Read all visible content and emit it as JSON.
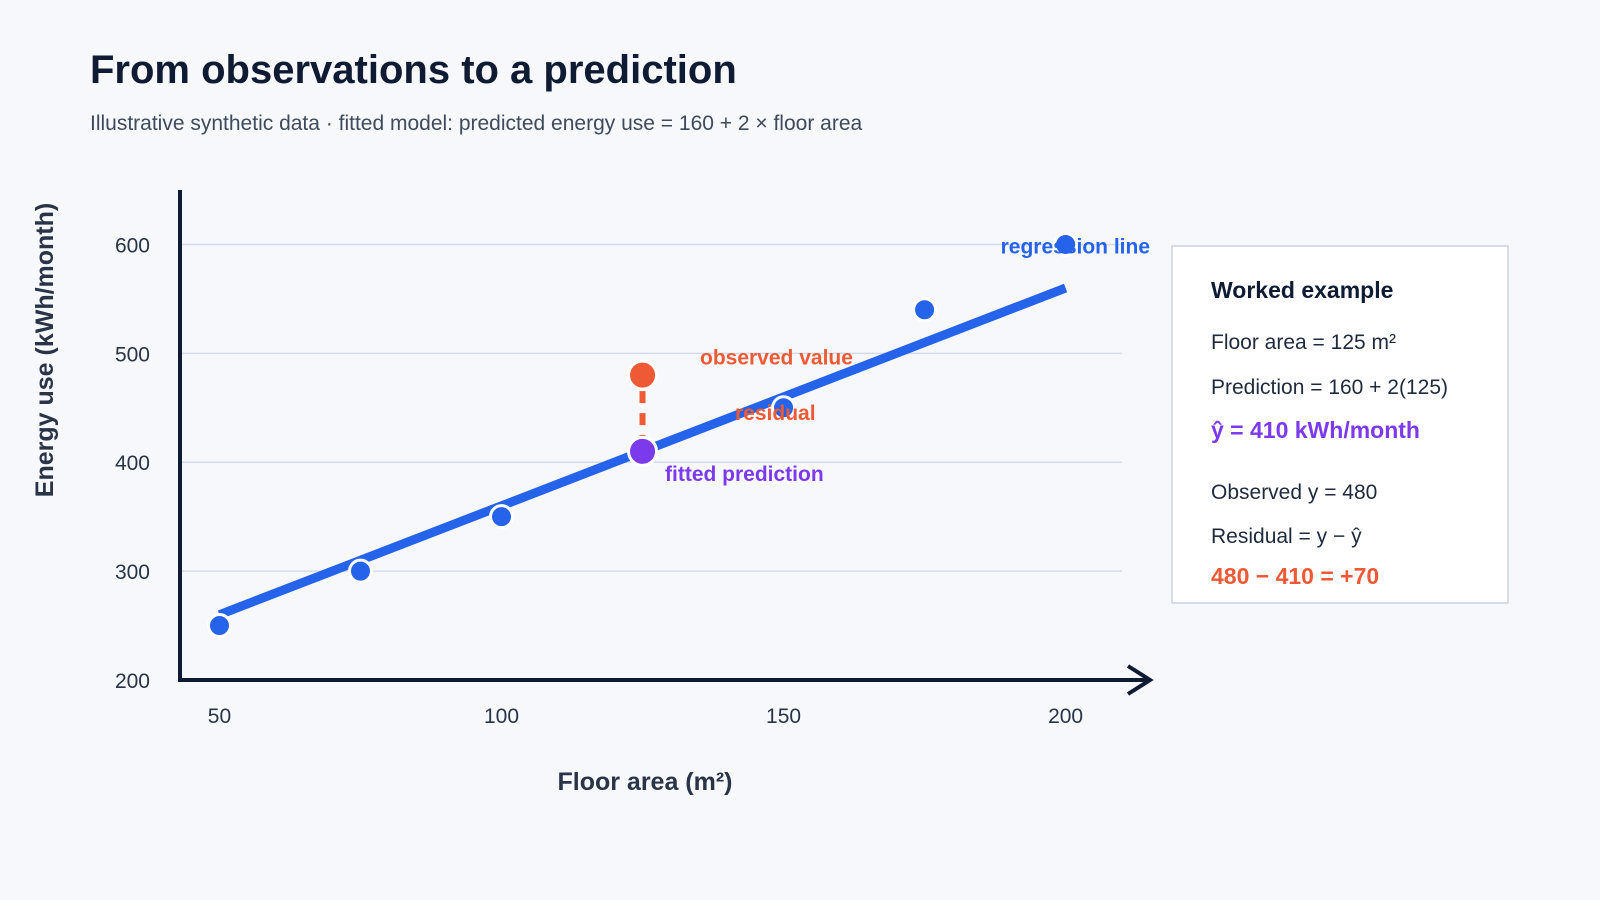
{
  "header": {
    "title": "From observations to a prediction",
    "subtitle": "Illustrative synthetic data · fitted model: predicted energy use = 160 + 2 × floor area"
  },
  "chart_data": {
    "type": "scatter",
    "xlabel": "Floor area (m²)",
    "ylabel": "Energy use (kWh/month)",
    "xlim": [
      43,
      210
    ],
    "ylim": [
      200,
      650
    ],
    "xticks": [
      50,
      100,
      150,
      200
    ],
    "yticks": [
      200,
      300,
      400,
      500,
      600
    ],
    "grid": "horizontal",
    "points": [
      {
        "x": 50,
        "y": 250
      },
      {
        "x": 75,
        "y": 300
      },
      {
        "x": 100,
        "y": 350
      },
      {
        "x": 150,
        "y": 450
      },
      {
        "x": 175,
        "y": 540
      },
      {
        "x": 200,
        "y": 600
      }
    ],
    "fit": {
      "intercept": 160,
      "slope": 2,
      "x_range": [
        50,
        200
      ]
    },
    "highlight": {
      "x": 125,
      "observed": 480,
      "predicted": 410
    },
    "annotations": {
      "regression_line": "regression line",
      "observed_value": "observed value",
      "residual": "residual",
      "fitted_prediction": "fitted prediction"
    },
    "colors": {
      "line": "#2563eb",
      "points": "#2563eb",
      "observed": "#ee5a36",
      "predicted": "#7c3aed",
      "axis": "#0f1b33",
      "grid": "#d4dbe8"
    }
  },
  "panel": {
    "title": "Worked example",
    "floor_area": "Floor area = 125 m²",
    "prediction": "Prediction = 160 + 2(125)",
    "yhat": "ŷ = 410 kWh/month",
    "observed": "Observed y = 480",
    "residual_def": "Residual = y − ŷ",
    "residual_value": "480 − 410 = +70"
  }
}
